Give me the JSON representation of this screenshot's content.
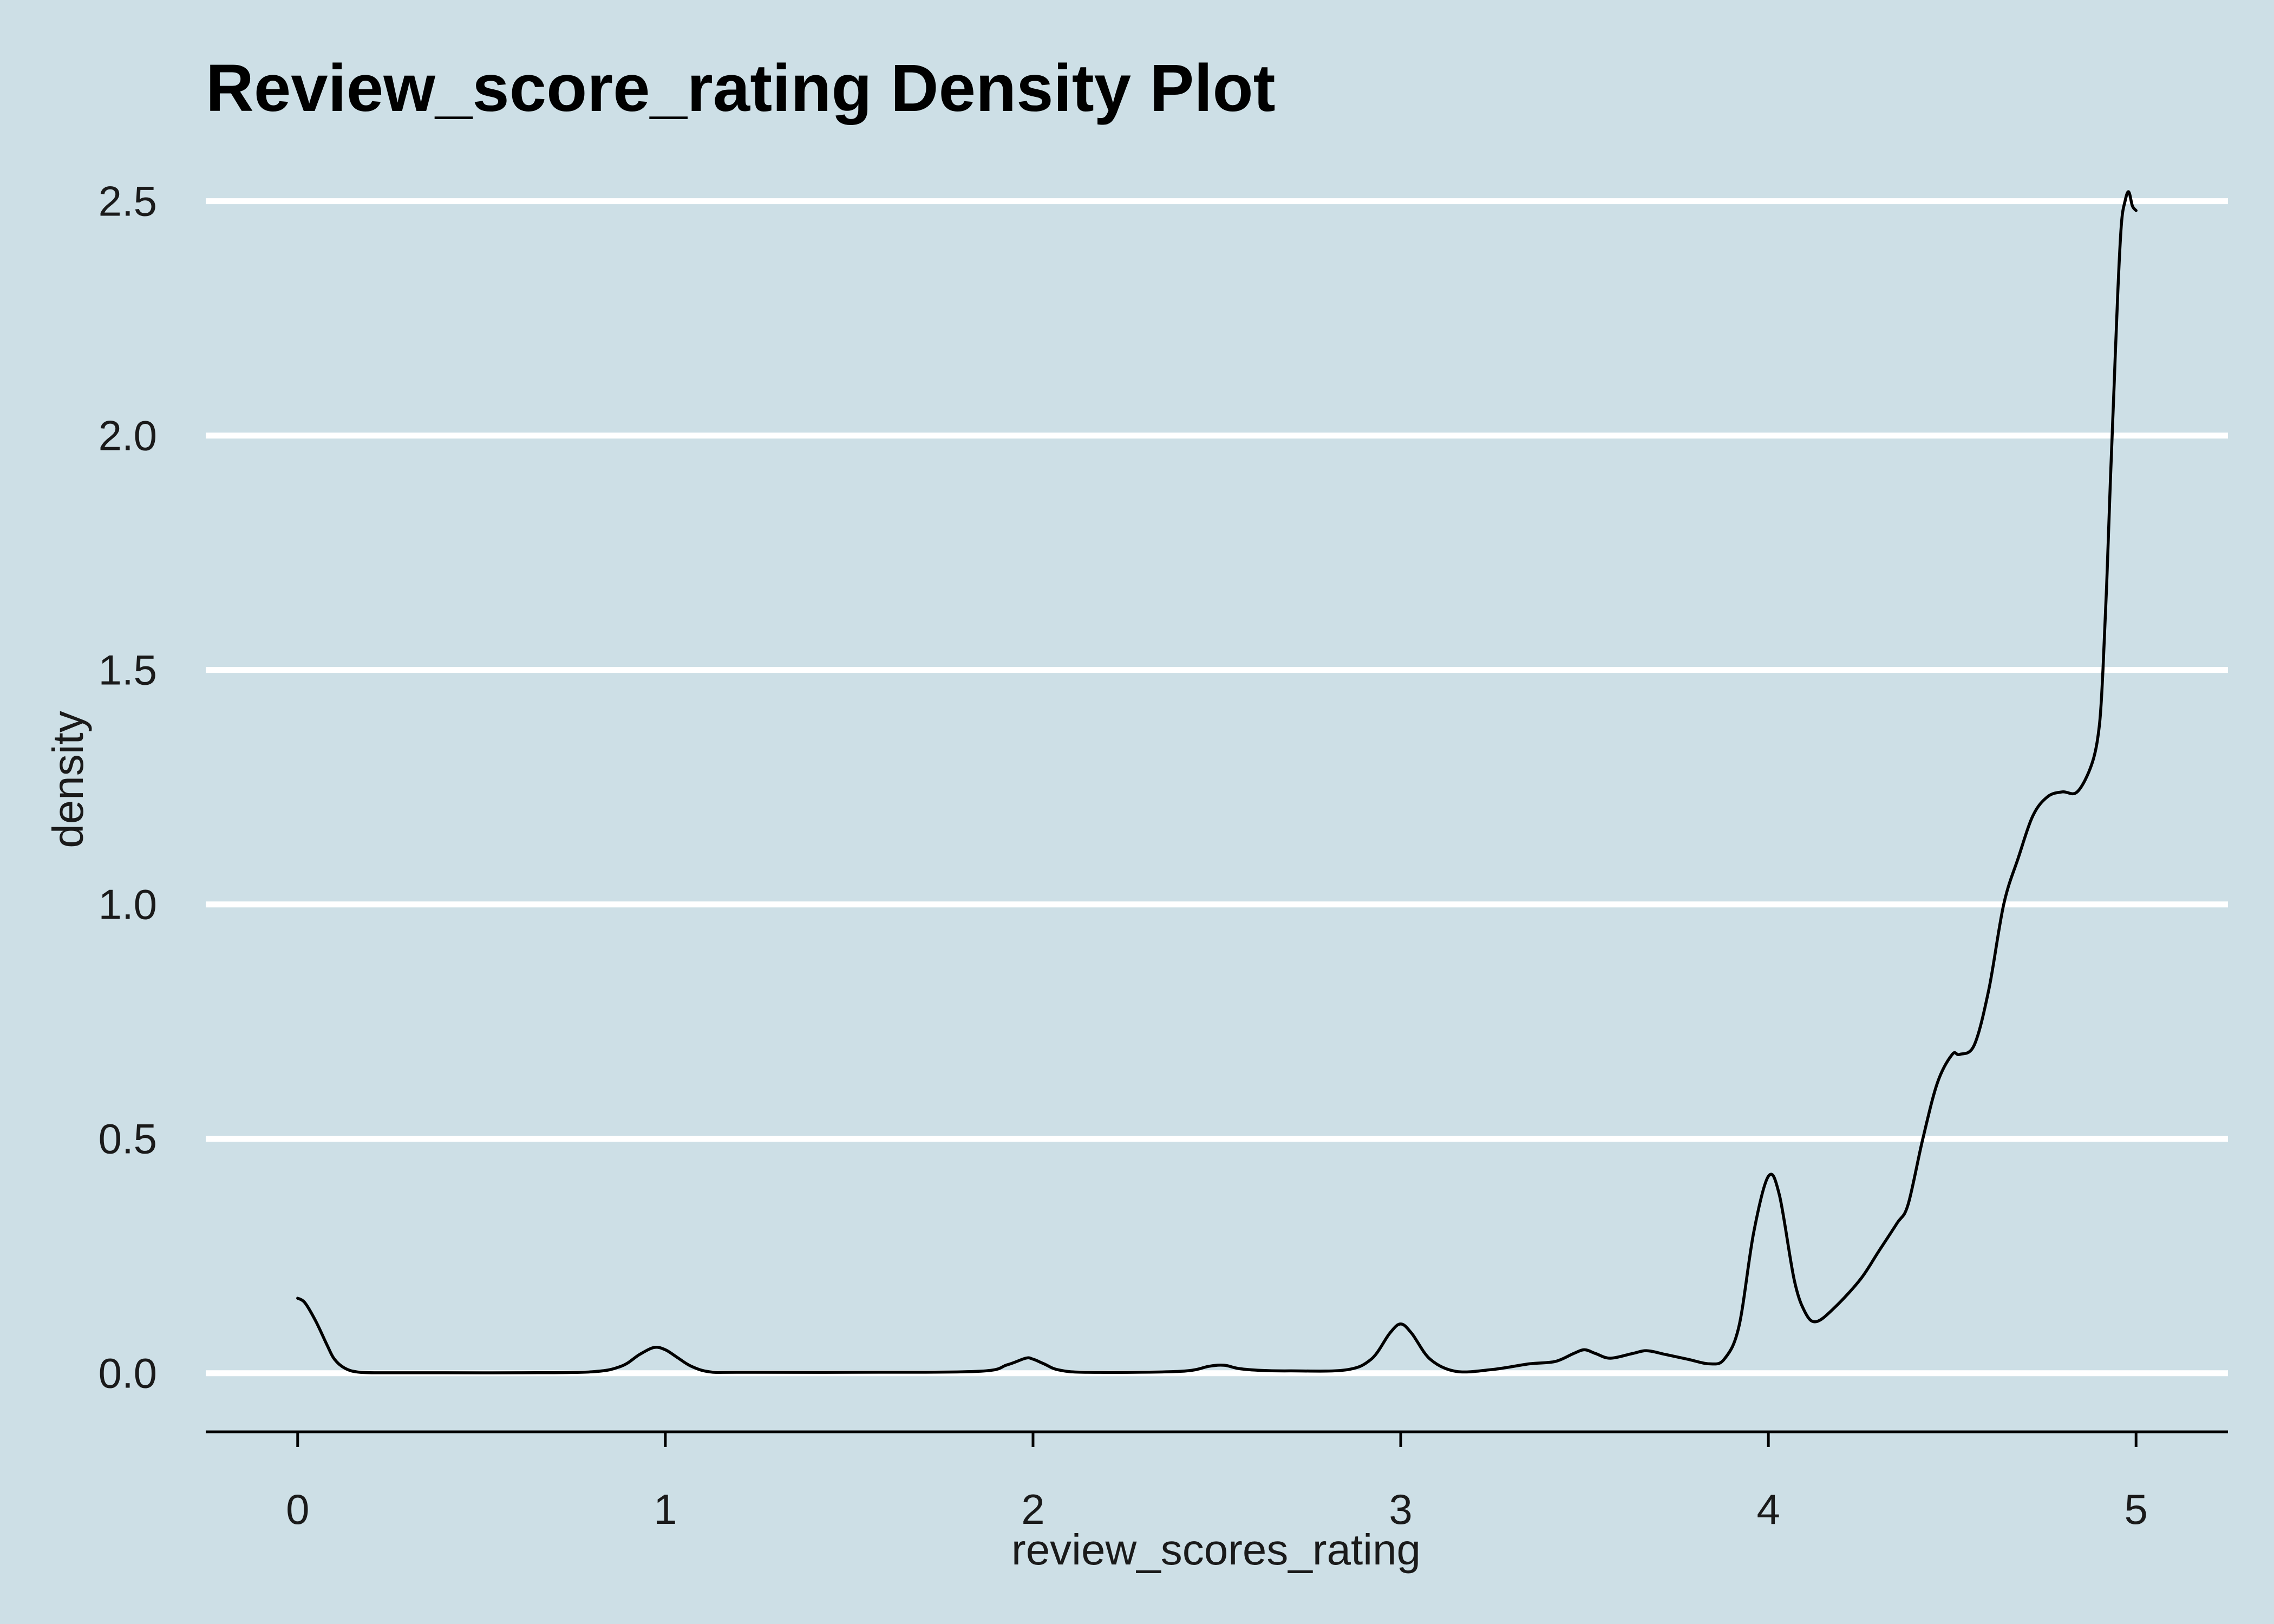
{
  "chart_data": {
    "type": "line",
    "title": "Review_score_rating Density Plot",
    "xlabel": "review_scores_rating",
    "ylabel": "density",
    "xlim": [
      -0.25,
      5.25
    ],
    "ylim": [
      -0.125,
      2.6
    ],
    "x_ticks": [
      0,
      1,
      2,
      3,
      4,
      5
    ],
    "x_tick_labels": [
      "0",
      "1",
      "2",
      "3",
      "4",
      "5"
    ],
    "y_ticks": [
      0,
      0.5,
      1,
      1.5,
      2,
      2.5
    ],
    "y_tick_labels": [
      "0.0",
      "0.5",
      "1.0",
      "1.5",
      "2.0",
      "2.5"
    ],
    "grid": "horizontal-major",
    "legend": "none",
    "colors": {
      "background": "#cddfe6",
      "grid": "#ffffff",
      "line": "#000000"
    },
    "series": [
      {
        "x": [
          0,
          0.02,
          0.05,
          0.08,
          0.1,
          0.13,
          0.17,
          0.25,
          0.4,
          0.6,
          0.8,
          0.88,
          0.93,
          0.97,
          1.0,
          1.03,
          1.07,
          1.12,
          1.2,
          1.5,
          1.85,
          1.93,
          1.98,
          2.0,
          2.03,
          2.07,
          2.15,
          2.4,
          2.48,
          2.52,
          2.56,
          2.62,
          2.7,
          2.85,
          2.92,
          2.97,
          3.0,
          3.03,
          3.08,
          3.15,
          3.25,
          3.35,
          3.42,
          3.47,
          3.5,
          3.53,
          3.57,
          3.63,
          3.67,
          3.72,
          3.78,
          3.84,
          3.88,
          3.92,
          3.96,
          4.0,
          4.03,
          4.07,
          4.1,
          4.13,
          4.18,
          4.25,
          4.3,
          4.35,
          4.38,
          4.42,
          4.46,
          4.5,
          4.52,
          4.56,
          4.6,
          4.64,
          4.68,
          4.72,
          4.76,
          4.8,
          4.84,
          4.88,
          4.9,
          4.91,
          4.92,
          4.93,
          4.94,
          4.95,
          4.96,
          4.97,
          4.98,
          4.99,
          5.0
        ],
        "y": [
          0.16,
          0.15,
          0.11,
          0.06,
          0.03,
          0.01,
          0.002,
          0.001,
          0.001,
          0.001,
          0.003,
          0.015,
          0.04,
          0.055,
          0.05,
          0.035,
          0.015,
          0.003,
          0.002,
          0.002,
          0.004,
          0.018,
          0.032,
          0.03,
          0.02,
          0.007,
          0.002,
          0.004,
          0.015,
          0.017,
          0.01,
          0.006,
          0.005,
          0.007,
          0.03,
          0.085,
          0.105,
          0.085,
          0.03,
          0.004,
          0.008,
          0.02,
          0.025,
          0.042,
          0.05,
          0.042,
          0.032,
          0.042,
          0.048,
          0.04,
          0.03,
          0.02,
          0.03,
          0.1,
          0.3,
          0.42,
          0.38,
          0.2,
          0.13,
          0.11,
          0.14,
          0.2,
          0.26,
          0.32,
          0.36,
          0.5,
          0.62,
          0.68,
          0.68,
          0.7,
          0.82,
          1.0,
          1.1,
          1.19,
          1.23,
          1.24,
          1.24,
          1.3,
          1.38,
          1.5,
          1.68,
          1.9,
          2.1,
          2.3,
          2.45,
          2.5,
          2.52,
          2.49,
          2.48
        ]
      }
    ]
  }
}
